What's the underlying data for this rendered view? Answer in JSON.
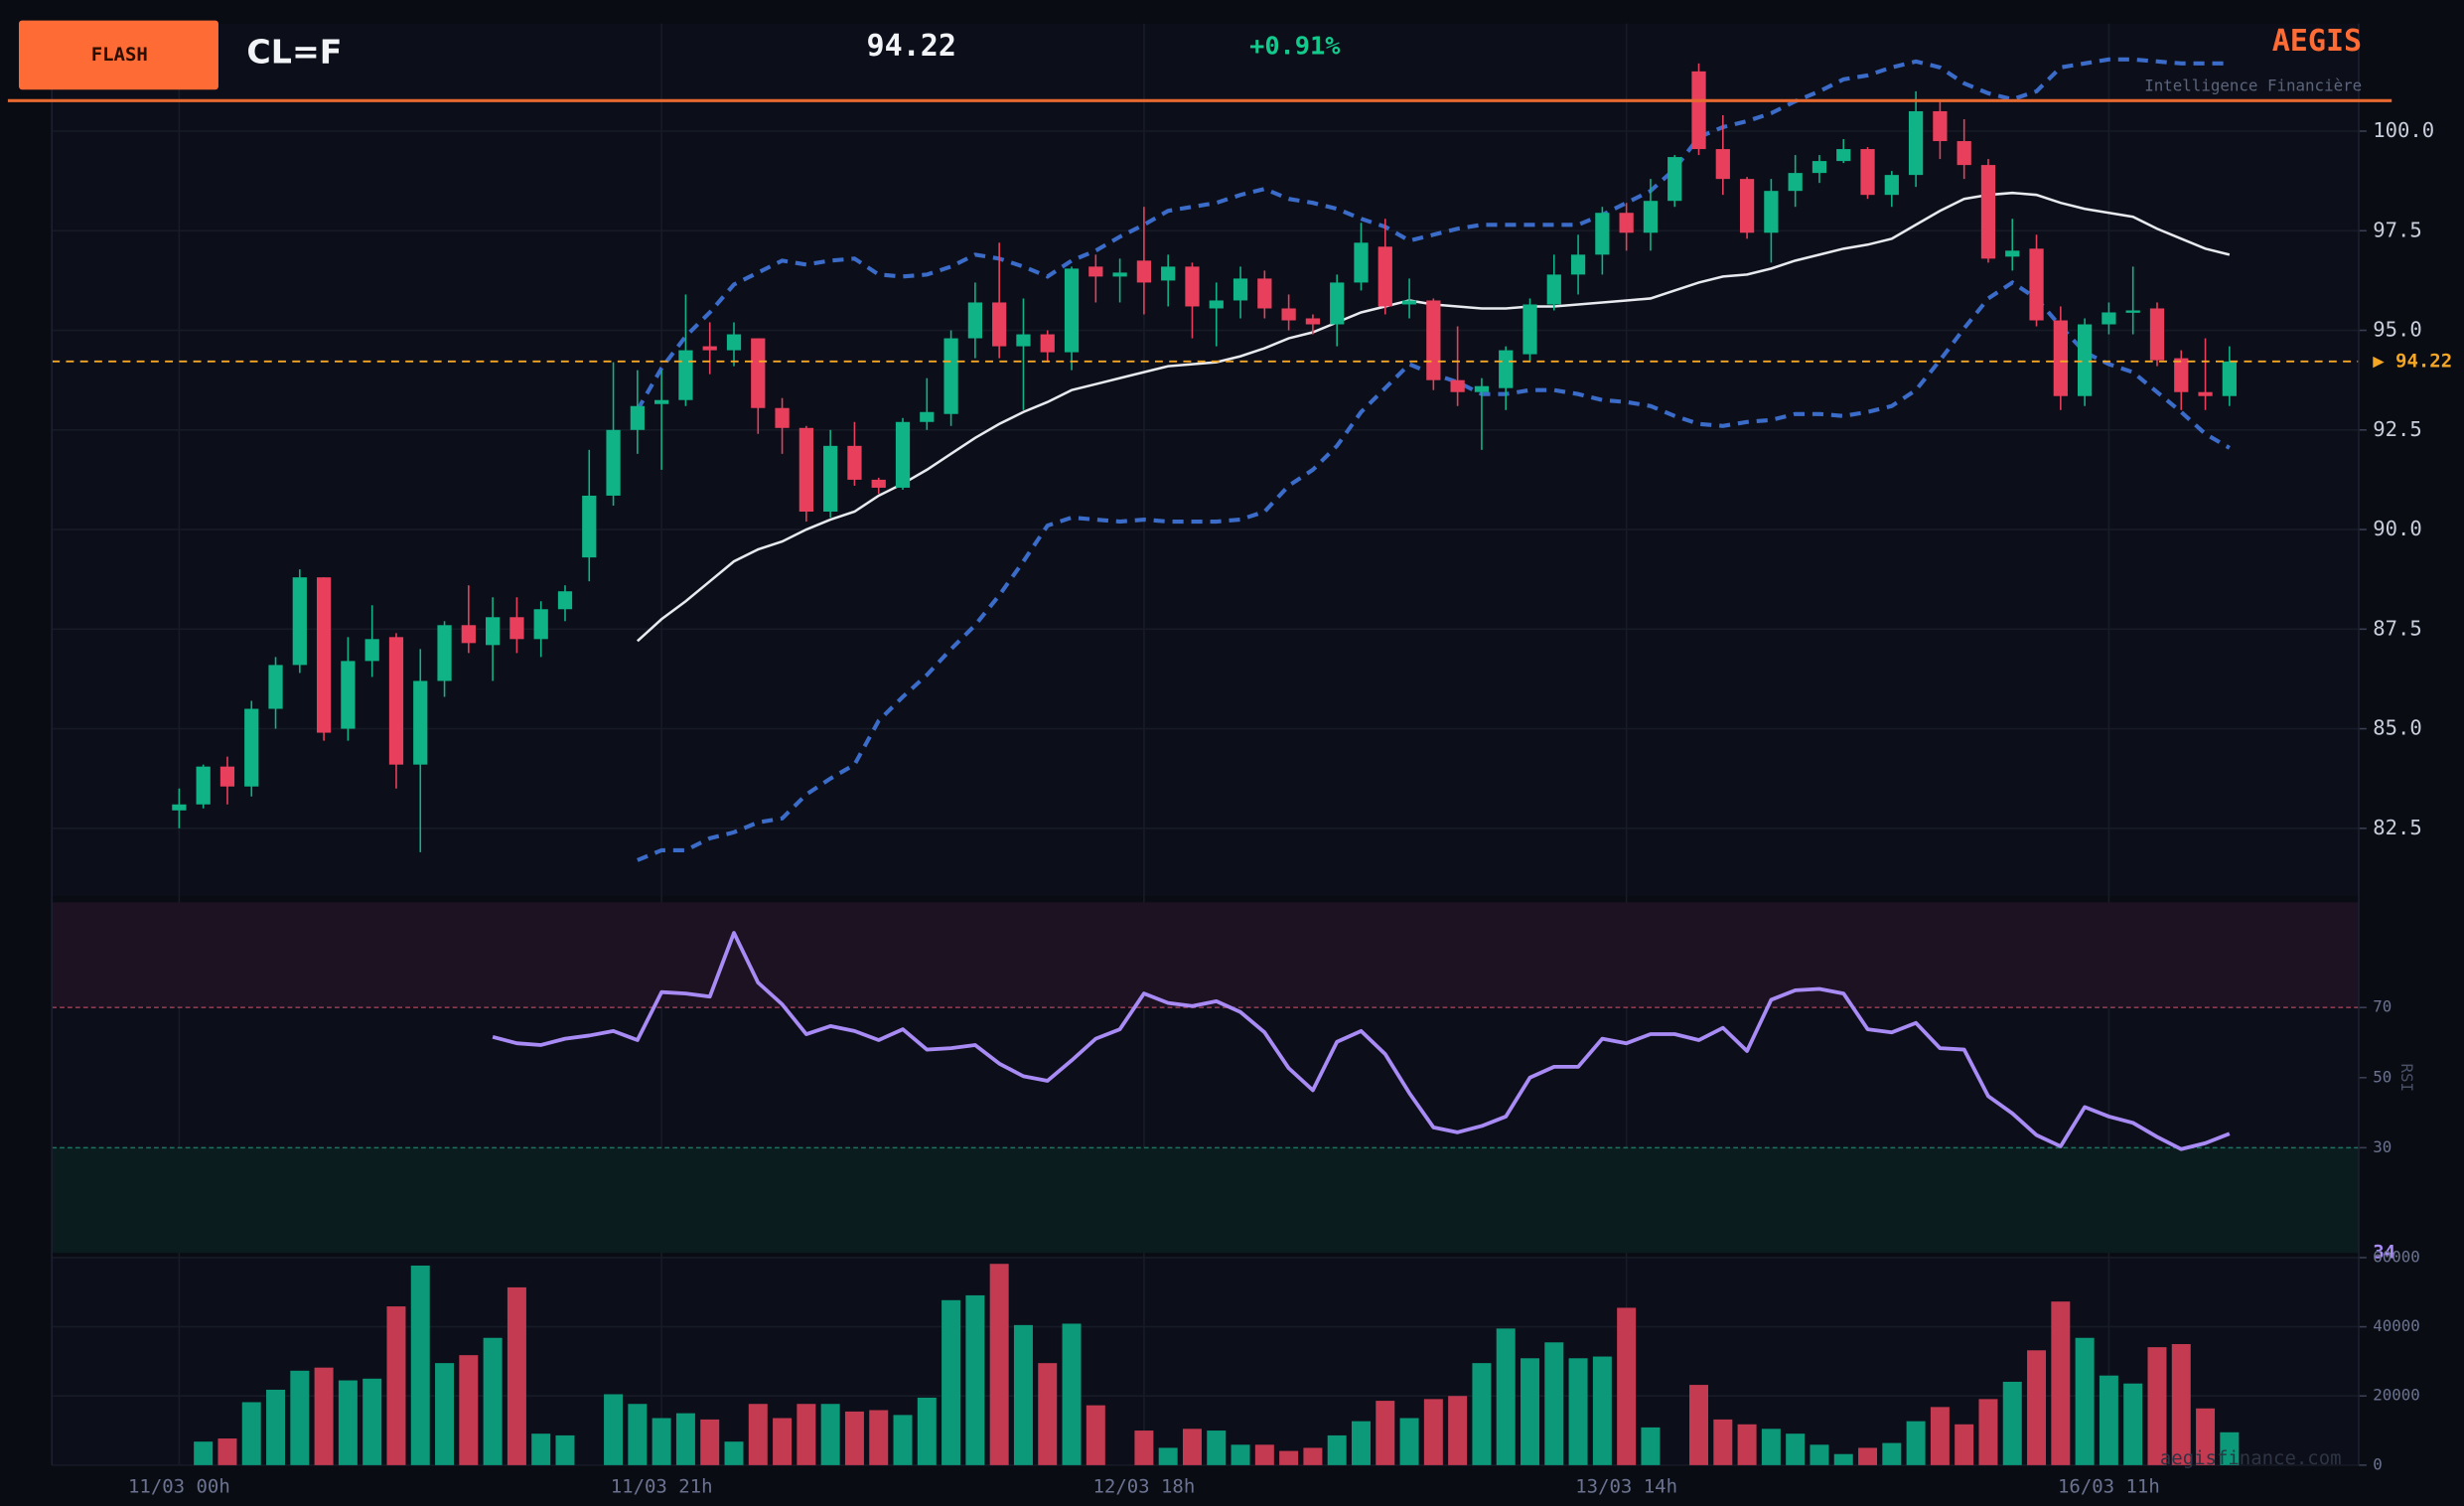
{
  "header": {
    "badge": "FLASH",
    "symbol": "CL=F",
    "change": "+0.91%",
    "brand": "AEGIS",
    "tagline": "Intelligence Financière"
  },
  "watermark": "aegisfinance.com",
  "chart_data": [
    {
      "type": "candlestick",
      "categories": [
        "11/03 00h",
        null,
        null,
        null,
        null,
        null,
        null,
        null,
        null,
        null,
        null,
        null,
        null,
        null,
        null,
        null,
        null,
        null,
        null,
        null,
        "11/03 21h",
        null,
        null,
        null,
        null,
        null,
        null,
        null,
        null,
        null,
        null,
        null,
        null,
        null,
        null,
        null,
        null,
        null,
        null,
        null,
        "12/03 18h",
        null,
        null,
        null,
        null,
        null,
        null,
        null,
        null,
        null,
        null,
        null,
        null,
        null,
        null,
        null,
        null,
        null,
        null,
        null,
        "13/03 14h",
        null,
        null,
        null,
        null,
        null,
        null,
        null,
        null,
        null,
        null,
        null,
        null,
        null,
        null,
        null,
        null,
        null,
        null,
        null,
        "16/03 11h",
        null,
        null,
        null,
        null,
        null
      ],
      "open": [
        82.95,
        83.1,
        84.05,
        83.55,
        85.5,
        86.6,
        88.8,
        85.0,
        86.7,
        87.3,
        84.1,
        86.2,
        87.6,
        87.1,
        87.8,
        87.25,
        88.0,
        89.3,
        90.85,
        92.5,
        93.15,
        93.25,
        94.6,
        94.5,
        94.8,
        93.05,
        92.55,
        90.45,
        92.1,
        91.25,
        91.05,
        92.7,
        92.9,
        94.8,
        95.7,
        94.6,
        94.9,
        94.45,
        96.6,
        96.35,
        96.75,
        96.25,
        96.6,
        95.55,
        95.75,
        96.3,
        95.55,
        95.3,
        95.15,
        96.2,
        97.1,
        95.65,
        95.75,
        93.75,
        93.45,
        93.55,
        94.4,
        95.65,
        96.4,
        96.9,
        97.95,
        97.45,
        98.25,
        101.5,
        99.55,
        98.8,
        97.45,
        98.5,
        98.95,
        99.25,
        99.55,
        98.4,
        98.9,
        100.5,
        99.75,
        99.15,
        96.85,
        97.05,
        95.25,
        93.35,
        95.15,
        95.45,
        95.55,
        94.3,
        93.45,
        93.35
      ],
      "high": [
        83.5,
        84.1,
        84.3,
        85.7,
        86.8,
        89.0,
        88.8,
        87.3,
        88.1,
        87.4,
        87.0,
        87.7,
        88.6,
        88.3,
        88.3,
        88.2,
        88.6,
        92.0,
        94.2,
        94.0,
        94.0,
        95.9,
        95.2,
        95.2,
        94.8,
        93.3,
        92.6,
        92.5,
        92.7,
        91.3,
        92.8,
        93.8,
        95.0,
        96.2,
        97.2,
        95.8,
        95.0,
        96.6,
        96.9,
        96.8,
        98.1,
        96.9,
        96.7,
        96.2,
        96.6,
        96.5,
        95.9,
        95.4,
        96.4,
        97.7,
        97.8,
        96.3,
        95.8,
        95.1,
        93.8,
        94.6,
        95.8,
        96.9,
        97.4,
        98.1,
        98.2,
        98.8,
        99.4,
        101.7,
        100.4,
        98.85,
        98.8,
        99.4,
        99.4,
        99.8,
        99.6,
        99.0,
        101.0,
        100.8,
        100.3,
        99.3,
        97.8,
        97.4,
        95.6,
        95.3,
        95.7,
        96.6,
        95.7,
        94.5,
        94.8,
        94.6
      ],
      "low": [
        82.5,
        83.0,
        83.1,
        83.3,
        85.0,
        86.4,
        84.7,
        84.7,
        86.3,
        83.5,
        81.9,
        85.8,
        86.9,
        86.2,
        86.9,
        86.8,
        87.7,
        88.7,
        90.6,
        91.9,
        91.5,
        93.1,
        93.9,
        94.1,
        92.4,
        91.9,
        90.2,
        90.3,
        91.1,
        90.9,
        91.0,
        92.5,
        92.6,
        94.3,
        94.3,
        93.0,
        94.2,
        94.0,
        95.7,
        95.7,
        95.4,
        95.6,
        94.8,
        94.6,
        95.3,
        95.3,
        95.0,
        94.9,
        94.6,
        96.0,
        95.4,
        95.3,
        93.5,
        93.1,
        92.0,
        93.0,
        94.2,
        95.5,
        95.9,
        96.4,
        97.0,
        97.0,
        98.1,
        99.4,
        98.4,
        97.3,
        96.7,
        98.1,
        98.7,
        99.2,
        98.3,
        98.1,
        98.6,
        99.3,
        98.8,
        96.7,
        96.5,
        95.1,
        93.0,
        93.1,
        94.9,
        94.9,
        94.1,
        93.0,
        93.0,
        93.1
      ],
      "close": [
        83.1,
        84.05,
        83.55,
        85.5,
        86.6,
        88.8,
        84.9,
        86.7,
        87.25,
        84.1,
        86.2,
        87.6,
        87.15,
        87.8,
        87.25,
        88.0,
        88.45,
        90.85,
        92.5,
        93.1,
        93.25,
        94.5,
        94.5,
        94.9,
        93.05,
        92.55,
        90.45,
        92.1,
        91.25,
        91.05,
        92.7,
        92.95,
        94.8,
        95.7,
        94.6,
        94.9,
        94.45,
        96.55,
        96.35,
        96.45,
        96.2,
        96.6,
        95.6,
        95.75,
        96.3,
        95.55,
        95.25,
        95.15,
        96.2,
        97.2,
        95.6,
        95.75,
        93.75,
        93.45,
        93.6,
        94.5,
        95.65,
        96.4,
        96.9,
        97.95,
        97.45,
        98.25,
        99.35,
        99.55,
        98.8,
        97.45,
        98.5,
        98.95,
        99.25,
        99.55,
        98.4,
        98.9,
        100.5,
        99.75,
        99.15,
        96.8,
        97.0,
        95.25,
        93.35,
        95.15,
        95.45,
        95.5,
        94.25,
        93.45,
        93.35,
        94.22
      ],
      "up_color": "#0fb385",
      "down_color": "#e8405c",
      "overlays": [
        {
          "color": "#3b6cc9",
          "dash": true,
          "values": [
            null,
            null,
            null,
            null,
            null,
            null,
            null,
            null,
            null,
            null,
            null,
            null,
            null,
            null,
            null,
            null,
            null,
            null,
            null,
            93.0,
            94.05,
            94.85,
            95.45,
            96.15,
            96.45,
            96.75,
            96.65,
            96.75,
            96.8,
            96.4,
            96.35,
            96.4,
            96.6,
            96.9,
            96.8,
            96.6,
            96.35,
            96.75,
            97.0,
            97.35,
            97.65,
            98.0,
            98.1,
            98.2,
            98.4,
            98.55,
            98.3,
            98.2,
            98.05,
            97.8,
            97.6,
            97.25,
            97.4,
            97.55,
            97.65,
            97.65,
            97.65,
            97.65,
            97.65,
            97.9,
            98.2,
            98.5,
            99.05,
            99.85,
            100.1,
            100.25,
            100.45,
            100.75,
            101.0,
            101.3,
            101.4,
            101.6,
            101.75,
            101.6,
            101.2,
            100.95,
            100.8,
            101.0,
            101.6,
            101.7,
            101.8,
            101.8,
            101.75,
            101.7,
            101.7,
            101.7
          ]
        },
        {
          "color": "#3b6cc9",
          "dash": true,
          "values": [
            null,
            null,
            null,
            null,
            null,
            null,
            null,
            null,
            null,
            null,
            null,
            null,
            null,
            null,
            null,
            null,
            null,
            null,
            null,
            81.7,
            81.95,
            81.95,
            82.25,
            82.4,
            82.65,
            82.75,
            83.35,
            83.75,
            84.1,
            85.2,
            85.8,
            86.35,
            87.0,
            87.6,
            88.35,
            89.2,
            90.1,
            90.3,
            90.25,
            90.2,
            90.25,
            90.2,
            90.2,
            90.2,
            90.25,
            90.45,
            91.1,
            91.5,
            92.1,
            92.95,
            93.55,
            94.15,
            93.9,
            93.7,
            93.4,
            93.4,
            93.5,
            93.5,
            93.4,
            93.25,
            93.2,
            93.1,
            92.85,
            92.65,
            92.6,
            92.7,
            92.75,
            92.9,
            92.9,
            92.85,
            92.95,
            93.1,
            93.5,
            94.25,
            95.05,
            95.8,
            96.2,
            95.8,
            95.1,
            94.45,
            94.15,
            93.95,
            93.45,
            92.95,
            92.4,
            92.05
          ]
        },
        {
          "color": "#e8eaf0",
          "dash": false,
          "values": [
            null,
            null,
            null,
            null,
            null,
            null,
            null,
            null,
            null,
            null,
            null,
            null,
            null,
            null,
            null,
            null,
            null,
            null,
            null,
            87.2,
            87.75,
            88.2,
            88.7,
            89.2,
            89.5,
            89.7,
            90.0,
            90.25,
            90.45,
            90.85,
            91.15,
            91.5,
            91.9,
            92.3,
            92.65,
            92.95,
            93.2,
            93.5,
            93.65,
            93.8,
            93.95,
            94.1,
            94.15,
            94.2,
            94.35,
            94.55,
            94.8,
            94.95,
            95.2,
            95.45,
            95.6,
            95.75,
            95.65,
            95.6,
            95.55,
            95.55,
            95.6,
            95.6,
            95.65,
            95.7,
            95.75,
            95.8,
            96.0,
            96.2,
            96.35,
            96.4,
            96.55,
            96.75,
            96.9,
            97.05,
            97.15,
            97.3,
            97.65,
            98.0,
            98.3,
            98.4,
            98.45,
            98.4,
            98.2,
            98.05,
            97.95,
            97.85,
            97.55,
            97.3,
            97.05,
            96.9
          ]
        }
      ],
      "current_price": 94.22,
      "current_price_label": "▶ 94.22",
      "current_price_color": "#f5a623",
      "ylim": [
        80.8,
        102.7
      ],
      "yticks": [
        82.5,
        {
          "value": 85,
          "label": "85.0"
        },
        87.5,
        {
          "value": 90,
          "label": "90.0"
        },
        92.5,
        {
          "value": 95,
          "label": "95.0"
        },
        97.5,
        {
          "value": 100,
          "label": "100.0"
        }
      ],
      "grid": true
    },
    {
      "type": "line",
      "ylabel": "RSI",
      "color": "#a98bf5",
      "values": [
        null,
        null,
        null,
        null,
        null,
        null,
        null,
        null,
        null,
        null,
        null,
        null,
        null,
        61.6,
        59.8,
        59.3,
        61.1,
        62,
        63.3,
        60.7,
        74.4,
        74,
        73.1,
        91.3,
        77.1,
        70.9,
        62.4,
        64.7,
        63.3,
        60.7,
        63.8,
        58,
        58.4,
        59.3,
        54,
        50.4,
        49.1,
        54.9,
        61.1,
        63.8,
        74,
        71.3,
        70.4,
        71.8,
        68.7,
        62.9,
        52.7,
        46.4,
        60.2,
        63.3,
        56.7,
        45.6,
        35.8,
        34.4,
        36.2,
        38.9,
        50,
        53.1,
        53.1,
        61.1,
        59.8,
        62.4,
        62.4,
        60.7,
        64.2,
        57.6,
        72.2,
        74.9,
        75.3,
        74,
        63.8,
        62.9,
        65.6,
        58.4,
        58,
        44.7,
        39.8,
        33.6,
        30.4,
        41.6,
        38.9,
        37.1,
        33.1,
        29.6,
        31.3,
        34
      ],
      "zones": [
        {
          "from": 70,
          "to": 100,
          "color": "#1d1222",
          "line": "#8c3a4f"
        },
        {
          "from": 0,
          "to": 30,
          "color": "#0b1c1f",
          "line": "#1e7360"
        }
      ],
      "ylim": [
        0,
        100
      ],
      "yticks": [
        30,
        50,
        70
      ],
      "grid": false
    },
    {
      "type": "bar",
      "up_color": "#0b997a",
      "down_color": "#c43a51",
      "values": [
        0,
        6800,
        7700,
        18200,
        21800,
        27300,
        28200,
        24500,
        25000,
        45900,
        57700,
        29500,
        31800,
        36800,
        51400,
        9100,
        8600,
        0,
        20500,
        17700,
        13600,
        15000,
        13200,
        6800,
        17700,
        13600,
        17700,
        17700,
        15500,
        15900,
        14500,
        19500,
        47700,
        49100,
        58200,
        40500,
        29500,
        40900,
        17300,
        0,
        10000,
        5000,
        10500,
        10000,
        5900,
        5900,
        4100,
        5000,
        8600,
        12700,
        18600,
        13600,
        19100,
        20000,
        29500,
        39500,
        30900,
        35500,
        30900,
        31400,
        45500,
        10900,
        0,
        23200,
        13200,
        11800,
        10500,
        9100,
        5900,
        3200,
        5000,
        6400,
        12700,
        16800,
        11800,
        19100,
        24100,
        33200,
        47300,
        36800,
        25900,
        23600,
        34100,
        35000,
        16400,
        9500
      ],
      "ylim": [
        0,
        60000
      ],
      "yticks": [
        0,
        20000,
        40000,
        60000
      ],
      "grid": true
    }
  ]
}
